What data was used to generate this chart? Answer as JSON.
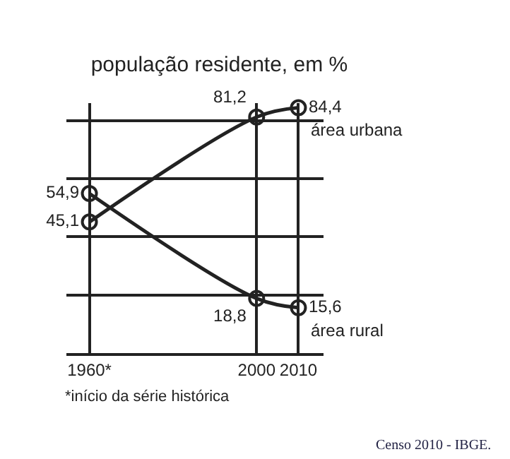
{
  "chart_data": {
    "type": "line",
    "title": "população residente, em %",
    "x": [
      1960,
      2000,
      2010
    ],
    "xlim": [
      1954.5,
      2016
    ],
    "xticks": [
      {
        "value": 1960,
        "label": "1960*"
      },
      2000,
      2010
    ],
    "ylim": [
      0,
      86
    ],
    "yticks": [
      {
        "value": 0,
        "label": null
      },
      {
        "value": 20,
        "label": null
      },
      {
        "value": 40,
        "label": null
      },
      {
        "value": 60,
        "label": null
      },
      {
        "value": 80,
        "label": null
      }
    ],
    "tick_labels": "x",
    "grid": "xy",
    "marker": "circle",
    "line_style": "solid",
    "legend": false,
    "series": [
      {
        "name": "área urbana",
        "color": "#222222",
        "values": [
          45.1,
          81.2,
          84.4
        ],
        "value_labels": [
          "45,1",
          "81,2",
          "84,4"
        ]
      },
      {
        "name": "área rural",
        "color": "#222222",
        "values": [
          54.9,
          18.8,
          15.6
        ],
        "value_labels": [
          "54,9",
          "18,8",
          "15,6"
        ]
      }
    ],
    "annotations": [
      "*início da série histórica",
      "Censo 2010 - IBGE."
    ]
  }
}
